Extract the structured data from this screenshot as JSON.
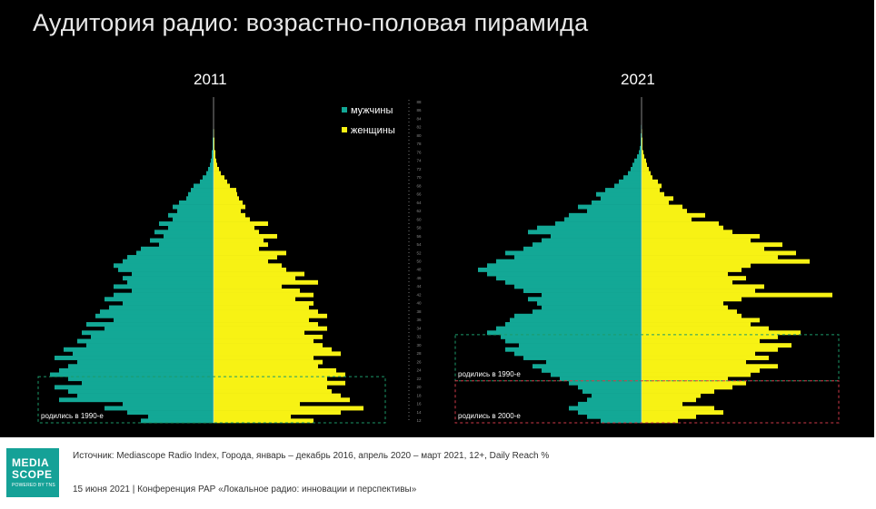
{
  "slide": {
    "title": "Аудитория радио: возрастно-половая пирамида",
    "source": "Источник: Mediascope Radio Index, Города, январь – декабрь 2016, апрель 2020 – март 2021, 12+, Daily Reach %",
    "conference": "15 июня 2021 | Конференция РАР «Локальное радио: инновации и перспективы»"
  },
  "logo": {
    "line1": "MEDIA",
    "line2": "SCOPE",
    "tagline": "POWERED BY TNS"
  },
  "colors": {
    "male": "#13a896",
    "female": "#f7f214",
    "background": "#000000",
    "green_box": "#1d9a6a",
    "red_box": "#d23a4a"
  },
  "chart_data": [
    {
      "type": "bar",
      "orientation": "population-pyramid",
      "title": "2011",
      "legend": [
        {
          "name": "мужчины",
          "color": "#13a896"
        },
        {
          "name": "женщины",
          "color": "#f7f214"
        }
      ],
      "age_range": [
        12,
        88
      ],
      "ages": [
        12,
        13,
        14,
        15,
        16,
        17,
        18,
        19,
        20,
        21,
        22,
        23,
        24,
        25,
        26,
        27,
        28,
        29,
        30,
        31,
        32,
        33,
        34,
        35,
        36,
        37,
        38,
        39,
        40,
        41,
        42,
        43,
        44,
        45,
        46,
        47,
        48,
        49,
        50,
        51,
        52,
        53,
        54,
        55,
        56,
        57,
        58,
        59,
        60,
        61,
        62,
        63,
        64,
        65,
        66,
        67,
        68,
        69,
        70,
        71,
        72,
        73,
        74,
        75,
        76,
        77,
        78,
        79,
        80,
        81,
        82,
        83,
        84,
        85,
        86,
        87,
        88
      ],
      "series": [
        {
          "name": "мужчины",
          "values": [
            80,
            72,
            95,
            120,
            100,
            170,
            150,
            160,
            175,
            145,
            160,
            180,
            170,
            160,
            150,
            175,
            155,
            165,
            140,
            150,
            135,
            145,
            120,
            140,
            110,
            130,
            125,
            115,
            100,
            120,
            110,
            90,
            110,
            95,
            100,
            90,
            105,
            110,
            100,
            95,
            85,
            80,
            60,
            70,
            55,
            65,
            50,
            60,
            45,
            50,
            40,
            45,
            38,
            30,
            28,
            25,
            22,
            15,
            12,
            8,
            6,
            4,
            3,
            2,
            2,
            1,
            1,
            1,
            0.5,
            0.5,
            0,
            0,
            0,
            0,
            0,
            0,
            0
          ]
        },
        {
          "name": "женщины",
          "values": [
            110,
            85,
            140,
            165,
            95,
            150,
            140,
            130,
            125,
            145,
            125,
            145,
            135,
            115,
            120,
            110,
            140,
            130,
            120,
            110,
            120,
            100,
            125,
            115,
            105,
            125,
            115,
            105,
            110,
            90,
            110,
            95,
            75,
            115,
            90,
            100,
            80,
            75,
            60,
            70,
            80,
            50,
            60,
            55,
            70,
            50,
            45,
            60,
            40,
            35,
            30,
            35,
            32,
            28,
            26,
            25,
            18,
            15,
            12,
            8,
            6,
            4,
            3,
            2,
            2,
            1,
            1,
            1,
            0.5,
            0.5,
            0,
            0,
            0,
            0,
            0,
            0,
            0
          ]
        }
      ],
      "annotations": [
        {
          "label": "родились в 1990-е",
          "box": "green",
          "ages": [
            12,
            22
          ]
        }
      ]
    },
    {
      "type": "bar",
      "orientation": "population-pyramid",
      "title": "2021",
      "legend": [
        {
          "name": "мужчины",
          "color": "#13a896"
        },
        {
          "name": "женщины",
          "color": "#f7f214"
        }
      ],
      "age_range": [
        12,
        88
      ],
      "ages": [
        12,
        13,
        14,
        15,
        16,
        17,
        18,
        19,
        20,
        21,
        22,
        23,
        24,
        25,
        26,
        27,
        28,
        29,
        30,
        31,
        32,
        33,
        34,
        35,
        36,
        37,
        38,
        39,
        40,
        41,
        42,
        43,
        44,
        45,
        46,
        47,
        48,
        49,
        50,
        51,
        52,
        53,
        54,
        55,
        56,
        57,
        58,
        59,
        60,
        61,
        62,
        63,
        64,
        65,
        66,
        67,
        68,
        69,
        70,
        71,
        72,
        73,
        74,
        75,
        76,
        77,
        78,
        79,
        80,
        81,
        82,
        83,
        84,
        85,
        86,
        87,
        88
      ],
      "series": [
        {
          "name": "мужчины",
          "values": [
            45,
            60,
            70,
            80,
            70,
            60,
            55,
            65,
            70,
            80,
            90,
            100,
            110,
            120,
            105,
            130,
            140,
            150,
            135,
            150,
            155,
            170,
            160,
            150,
            145,
            140,
            120,
            110,
            115,
            125,
            110,
            130,
            140,
            150,
            160,
            170,
            180,
            170,
            160,
            140,
            150,
            130,
            120,
            110,
            100,
            125,
            115,
            95,
            85,
            80,
            60,
            70,
            55,
            45,
            50,
            40,
            30,
            25,
            20,
            15,
            12,
            10,
            8,
            5,
            3,
            2,
            1,
            1,
            1,
            0.5,
            0.5,
            0,
            0,
            0,
            0,
            0,
            0
          ]
        },
        {
          "name": "женщины",
          "values": [
            40,
            60,
            90,
            80,
            45,
            60,
            65,
            80,
            100,
            115,
            95,
            120,
            130,
            150,
            115,
            140,
            125,
            150,
            165,
            130,
            150,
            175,
            140,
            120,
            130,
            110,
            105,
            95,
            90,
            110,
            210,
            125,
            135,
            100,
            115,
            95,
            110,
            120,
            185,
            150,
            170,
            135,
            155,
            120,
            130,
            100,
            90,
            85,
            55,
            70,
            50,
            45,
            30,
            35,
            25,
            20,
            22,
            18,
            12,
            10,
            8,
            6,
            5,
            3,
            2,
            1,
            1,
            1,
            0.5,
            0.5,
            0,
            0,
            0,
            0,
            0,
            0,
            0
          ]
        }
      ],
      "annotations": [
        {
          "label": "родились в 1990-е",
          "box": "green",
          "ages": [
            22,
            32
          ]
        },
        {
          "label": "родились в 2000-е",
          "box": "red",
          "ages": [
            12,
            21
          ]
        }
      ]
    }
  ],
  "axis": {
    "tick_labels": [
      "12",
      "14",
      "16",
      "18",
      "20",
      "22",
      "24",
      "26",
      "28",
      "30",
      "32",
      "34",
      "36",
      "38",
      "40",
      "42",
      "44",
      "46",
      "48",
      "50",
      "52",
      "54",
      "56",
      "58",
      "60",
      "62",
      "64",
      "66",
      "68",
      "70",
      "72",
      "74",
      "76",
      "78",
      "80",
      "82",
      "84",
      "86",
      "88"
    ]
  }
}
